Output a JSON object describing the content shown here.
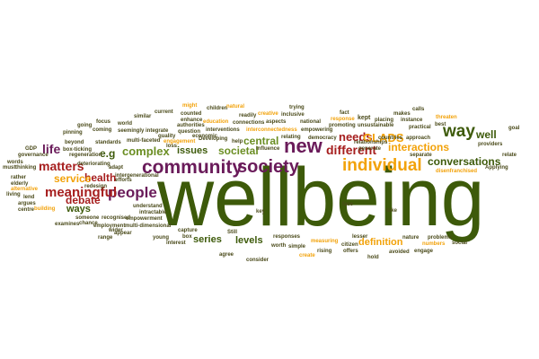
{
  "colors": {
    "olive": "#3d5a0a",
    "green": "#6b8e23",
    "red": "#a61e1e",
    "purple": "#6a1b5a",
    "orange": "#f2a20a",
    "dark": "#4a4a1a"
  },
  "words": [
    {
      "text": "wellbeing",
      "tone": "olive"
    },
    {
      "text": "community",
      "tone": "purple"
    },
    {
      "text": "society",
      "tone": "purple"
    },
    {
      "text": "individual",
      "tone": "orange"
    },
    {
      "text": "people",
      "tone": "purple"
    },
    {
      "text": "new",
      "tone": "purple"
    },
    {
      "text": "way",
      "tone": "olive"
    },
    {
      "text": "different",
      "tone": "red"
    },
    {
      "text": "needs",
      "tone": "red"
    },
    {
      "text": "complex",
      "tone": "green"
    },
    {
      "text": "matters",
      "tone": "red"
    },
    {
      "text": "meaningful",
      "tone": "red"
    },
    {
      "text": "life",
      "tone": "purple"
    },
    {
      "text": "health",
      "tone": "red"
    },
    {
      "text": "service",
      "tone": "orange"
    },
    {
      "text": "debate",
      "tone": "red"
    },
    {
      "text": "ways",
      "tone": "olive"
    },
    {
      "text": "e.g",
      "tone": "olive"
    },
    {
      "text": "central",
      "tone": "green"
    },
    {
      "text": "societal",
      "tone": "green"
    },
    {
      "text": "issues",
      "tone": "olive"
    },
    {
      "text": "interactions",
      "tone": "orange"
    },
    {
      "text": "conversations",
      "tone": "olive"
    },
    {
      "text": "GLADS",
      "tone": "orange"
    },
    {
      "text": "well",
      "tone": "olive"
    },
    {
      "text": "levels",
      "tone": "olive"
    },
    {
      "text": "series",
      "tone": "olive"
    },
    {
      "text": "definition",
      "tone": "orange"
    },
    {
      "text": "might",
      "tone": "orange"
    },
    {
      "text": "children",
      "tone": "dark"
    },
    {
      "text": "natural",
      "tone": "orange"
    },
    {
      "text": "trying",
      "tone": "dark"
    },
    {
      "text": "current",
      "tone": "dark"
    },
    {
      "text": "counted",
      "tone": "dark"
    },
    {
      "text": "enhance",
      "tone": "dark"
    },
    {
      "text": "authorities",
      "tone": "dark"
    },
    {
      "text": "readily",
      "tone": "dark"
    },
    {
      "text": "creative",
      "tone": "dark"
    },
    {
      "text": "inclusive",
      "tone": "dark"
    },
    {
      "text": "fact",
      "tone": "dark"
    },
    {
      "text": "response",
      "tone": "orange"
    },
    {
      "text": "kept",
      "tone": "dark"
    },
    {
      "text": "calls",
      "tone": "dark"
    },
    {
      "text": "makes",
      "tone": "dark"
    },
    {
      "text": "placing",
      "tone": "dark"
    },
    {
      "text": "instance",
      "tone": "dark"
    },
    {
      "text": "threaten",
      "tone": "orange"
    },
    {
      "text": "similar",
      "tone": "dark"
    },
    {
      "text": "education",
      "tone": "orange"
    },
    {
      "text": "connections",
      "tone": "dark"
    },
    {
      "text": "aspects",
      "tone": "dark"
    },
    {
      "text": "national",
      "tone": "dark"
    },
    {
      "text": "promoting",
      "tone": "dark"
    },
    {
      "text": "unsustainable",
      "tone": "dark"
    },
    {
      "text": "practical",
      "tone": "dark"
    },
    {
      "text": "best",
      "tone": "dark"
    },
    {
      "text": "going",
      "tone": "dark"
    },
    {
      "text": "focus",
      "tone": "dark"
    },
    {
      "text": "world",
      "tone": "dark"
    },
    {
      "text": "question",
      "tone": "dark"
    },
    {
      "text": "interventions",
      "tone": "dark"
    },
    {
      "text": "interconnectedness",
      "tone": "orange"
    },
    {
      "text": "empowering",
      "tone": "dark"
    },
    {
      "text": "countries",
      "tone": "dark"
    },
    {
      "text": "approach",
      "tone": "dark"
    },
    {
      "text": "pinning",
      "tone": "dark"
    },
    {
      "text": "coming",
      "tone": "dark"
    },
    {
      "text": "seemingly",
      "tone": "dark"
    },
    {
      "text": "integrate",
      "tone": "dark"
    },
    {
      "text": "relating",
      "tone": "dark"
    },
    {
      "text": "democracy",
      "tone": "dark"
    },
    {
      "text": "beyond",
      "tone": "dark"
    },
    {
      "text": "standards",
      "tone": "dark"
    },
    {
      "text": "multi-faceted",
      "tone": "dark"
    },
    {
      "text": "engagement",
      "tone": "orange"
    },
    {
      "text": "Developing",
      "tone": "dark"
    },
    {
      "text": "help",
      "tone": "dark"
    },
    {
      "text": "providers",
      "tone": "dark"
    },
    {
      "text": "GDP",
      "tone": "dark"
    },
    {
      "text": "governance",
      "tone": "dark"
    },
    {
      "text": "regeneration",
      "tone": "dark"
    },
    {
      "text": "relationships",
      "tone": "dark"
    },
    {
      "text": "generate",
      "tone": "dark"
    },
    {
      "text": "separate",
      "tone": "dark"
    },
    {
      "text": "relate",
      "tone": "dark"
    },
    {
      "text": "deteriorating",
      "tone": "dark"
    },
    {
      "text": "economic",
      "tone": "dark"
    },
    {
      "text": "quality",
      "tone": "dark"
    },
    {
      "text": "disenfranchised",
      "tone": "orange"
    },
    {
      "text": "Applying",
      "tone": "dark"
    },
    {
      "text": "must",
      "tone": "dark"
    },
    {
      "text": "thinking",
      "tone": "dark"
    },
    {
      "text": "adapt",
      "tone": "dark"
    },
    {
      "text": "elderly",
      "tone": "dark"
    },
    {
      "text": "rather",
      "tone": "dark"
    },
    {
      "text": "alternative",
      "tone": "dark"
    },
    {
      "text": "living",
      "tone": "dark"
    },
    {
      "text": "lend",
      "tone": "dark"
    },
    {
      "text": "argues",
      "tone": "dark"
    },
    {
      "text": "centre",
      "tone": "dark"
    },
    {
      "text": "building",
      "tone": "dark"
    },
    {
      "text": "box-ticking",
      "tone": "dark"
    },
    {
      "text": "redesign",
      "tone": "dark"
    },
    {
      "text": "efforts",
      "tone": "dark"
    },
    {
      "text": "intergenerational",
      "tone": "dark"
    },
    {
      "text": "understand",
      "tone": "dark"
    },
    {
      "text": "empowerment",
      "tone": "dark"
    },
    {
      "text": "employment",
      "tone": "dark"
    },
    {
      "text": "multi-dimensional",
      "tone": "dark"
    },
    {
      "text": "intractable",
      "tone": "dark"
    },
    {
      "text": "recognised",
      "tone": "dark"
    },
    {
      "text": "someone",
      "tone": "dark"
    },
    {
      "text": "chance",
      "tone": "dark"
    },
    {
      "text": "examines",
      "tone": "dark"
    },
    {
      "text": "range",
      "tone": "dark"
    },
    {
      "text": "wider",
      "tone": "dark"
    },
    {
      "text": "appear",
      "tone": "dark"
    },
    {
      "text": "young",
      "tone": "dark"
    },
    {
      "text": "capture",
      "tone": "dark"
    },
    {
      "text": "interest",
      "tone": "dark"
    },
    {
      "text": "box",
      "tone": "dark"
    },
    {
      "text": "Still",
      "tone": "dark"
    },
    {
      "text": "key",
      "tone": "dark"
    },
    {
      "text": "worth",
      "tone": "dark"
    },
    {
      "text": "simple",
      "tone": "dark"
    },
    {
      "text": "agree",
      "tone": "dark"
    },
    {
      "text": "create",
      "tone": "dark"
    },
    {
      "text": "rising",
      "tone": "dark"
    },
    {
      "text": "measuring",
      "tone": "dark"
    },
    {
      "text": "lesser",
      "tone": "dark"
    },
    {
      "text": "citizen",
      "tone": "dark"
    },
    {
      "text": "offers",
      "tone": "dark"
    },
    {
      "text": "avoided",
      "tone": "dark"
    },
    {
      "text": "nature",
      "tone": "dark"
    },
    {
      "text": "problems",
      "tone": "dark"
    },
    {
      "text": "numbers",
      "tone": "orange"
    },
    {
      "text": "social",
      "tone": "dark"
    },
    {
      "text": "engage",
      "tone": "dark"
    },
    {
      "text": "face",
      "tone": "dark"
    },
    {
      "text": "take",
      "tone": "dark"
    },
    {
      "text": "consider",
      "tone": "dark"
    },
    {
      "text": "words",
      "tone": "dark"
    },
    {
      "text": "hold",
      "tone": "dark"
    },
    {
      "text": "goal",
      "tone": "dark"
    },
    {
      "text": "responses",
      "tone": "dark"
    },
    {
      "text": "influence",
      "tone": "dark"
    },
    {
      "text": "loss",
      "tone": "dark"
    }
  ]
}
